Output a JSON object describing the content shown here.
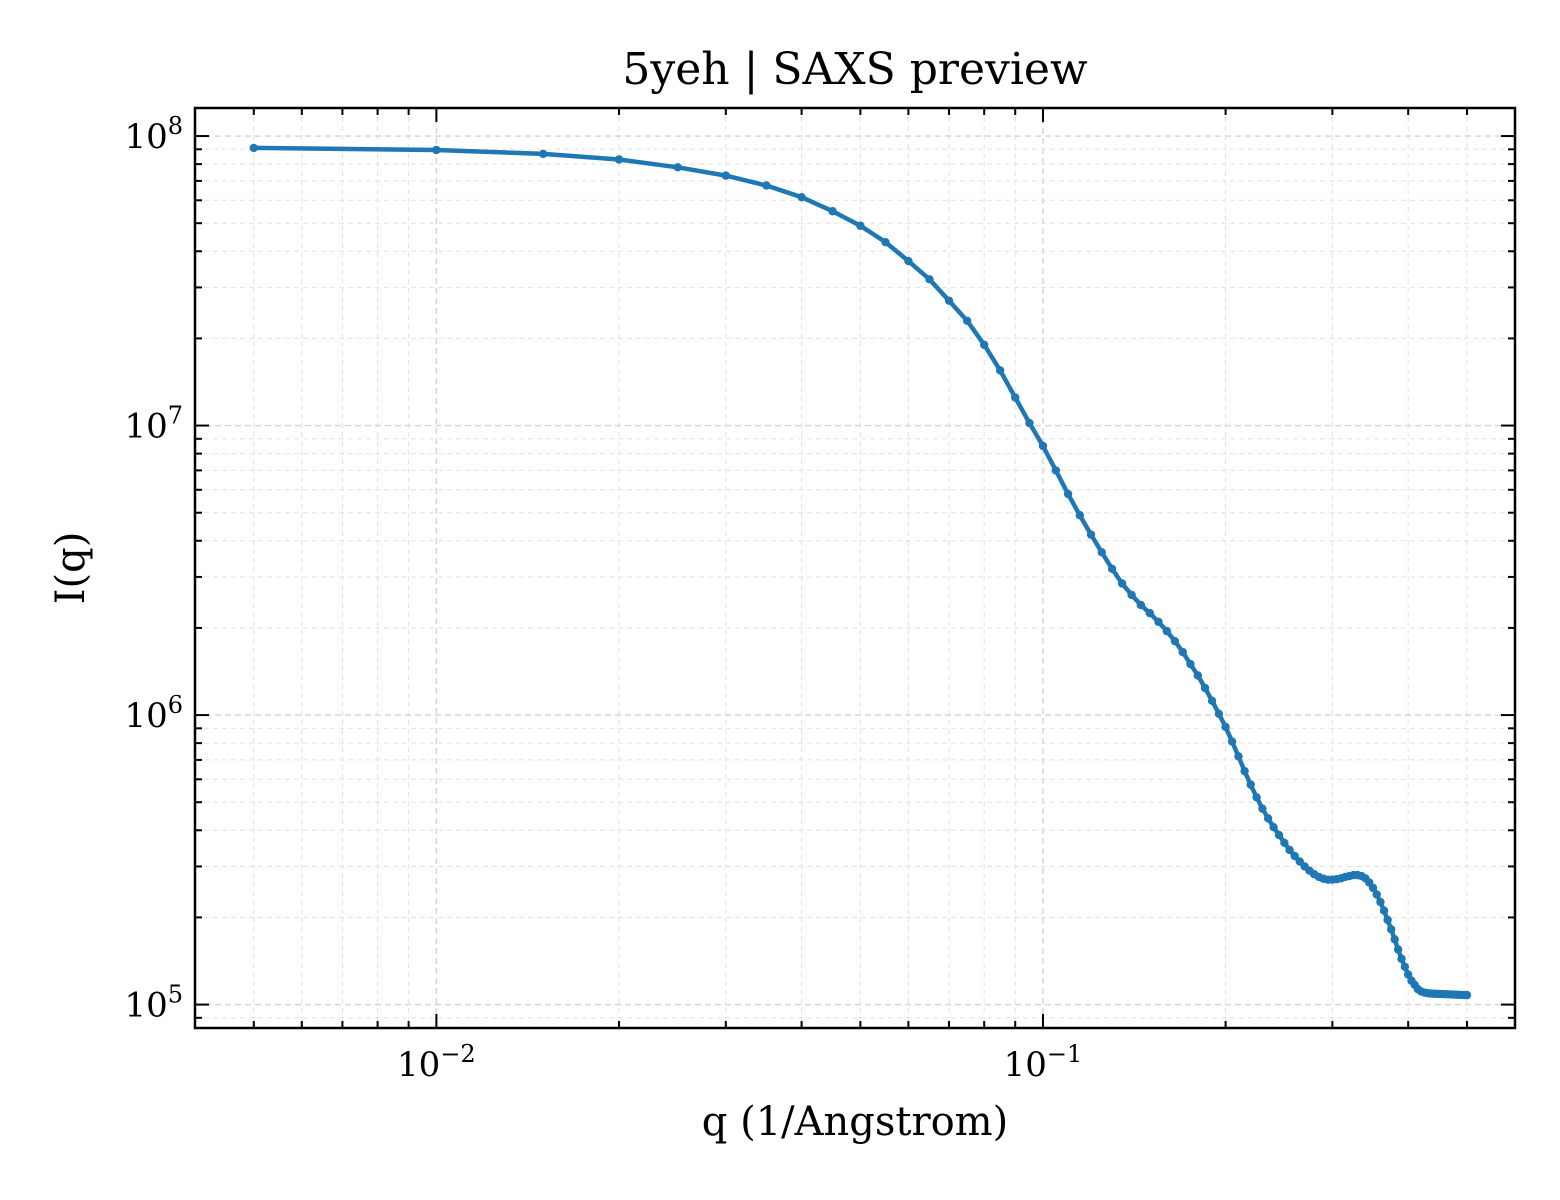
{
  "chart_data": {
    "type": "line",
    "title": "5yeh | SAXS preview",
    "xlabel": "q (1/Angstrom)",
    "ylabel": "I(q)",
    "xscale": "log",
    "yscale": "log",
    "xlim": [
      0.004,
      0.6
    ],
    "ylim": [
      83000,
      125000000
    ],
    "x_ticks": [
      {
        "base": "10",
        "exp": "−2",
        "value": 0.01
      },
      {
        "base": "10",
        "exp": "−1",
        "value": 0.1
      }
    ],
    "y_ticks": [
      {
        "base": "10",
        "exp": "5",
        "value": 100000
      },
      {
        "base": "10",
        "exp": "6",
        "value": 1000000
      },
      {
        "base": "10",
        "exp": "7",
        "value": 10000000
      },
      {
        "base": "10",
        "exp": "8",
        "value": 100000000
      }
    ],
    "grid": true,
    "line_color": "#1f77b4",
    "series": [
      {
        "x": [
          0.005,
          0.01,
          0.015,
          0.02,
          0.025,
          0.03,
          0.035,
          0.04,
          0.045,
          0.05,
          0.055,
          0.06,
          0.065,
          0.07,
          0.075,
          0.08,
          0.085,
          0.09,
          0.095,
          0.1,
          0.105,
          0.11,
          0.115,
          0.12,
          0.125,
          0.13,
          0.135,
          0.14,
          0.145,
          0.15,
          0.155,
          0.16,
          0.165,
          0.17,
          0.175,
          0.18,
          0.185,
          0.19,
          0.195,
          0.2,
          0.205,
          0.21,
          0.215,
          0.22,
          0.225,
          0.23,
          0.235,
          0.24,
          0.245,
          0.25,
          0.255,
          0.26,
          0.265,
          0.27,
          0.275,
          0.28,
          0.285,
          0.29,
          0.295,
          0.3,
          0.305,
          0.31,
          0.315,
          0.32,
          0.325,
          0.33,
          0.335,
          0.34,
          0.345,
          0.35,
          0.355,
          0.36,
          0.365,
          0.37,
          0.375,
          0.38,
          0.385,
          0.39,
          0.395,
          0.4,
          0.405,
          0.41,
          0.415,
          0.42,
          0.425,
          0.43,
          0.435,
          0.44,
          0.445,
          0.45,
          0.455,
          0.46,
          0.465,
          0.47,
          0.475,
          0.48,
          0.485,
          0.49,
          0.495,
          0.5
        ],
        "y": [
          91000000,
          89500000,
          86800000,
          83000000,
          78000000,
          73000000,
          67500000,
          61500000,
          55000000,
          49000000,
          43000000,
          37000000,
          32000000,
          27000000,
          23000000,
          19000000,
          15500000,
          12500000,
          10200000,
          8500000,
          7000000,
          5800000,
          4900000,
          4200000,
          3650000,
          3200000,
          2850000,
          2600000,
          2400000,
          2250000,
          2100000,
          1950000,
          1800000,
          1650000,
          1500000,
          1370000,
          1240000,
          1120000,
          1010000,
          910000,
          810000,
          720000,
          640000,
          575000,
          520000,
          475000,
          440000,
          410000,
          385000,
          362000,
          342000,
          326000,
          312000,
          300000,
          290000,
          282000,
          276000,
          272000,
          270000,
          270000,
          271000,
          273000,
          276000,
          278000,
          280000,
          280000,
          278000,
          273000,
          264000,
          253000,
          240000,
          226000,
          211000,
          196000,
          182000,
          168000,
          155000,
          144000,
          135000,
          127000,
          121000,
          117000,
          113000,
          111000,
          110000,
          109500,
          109200,
          109000,
          108900,
          108800,
          108700,
          108600,
          108500,
          108400,
          108300,
          108200,
          108100,
          108000,
          107900,
          107800
        ]
      }
    ]
  }
}
